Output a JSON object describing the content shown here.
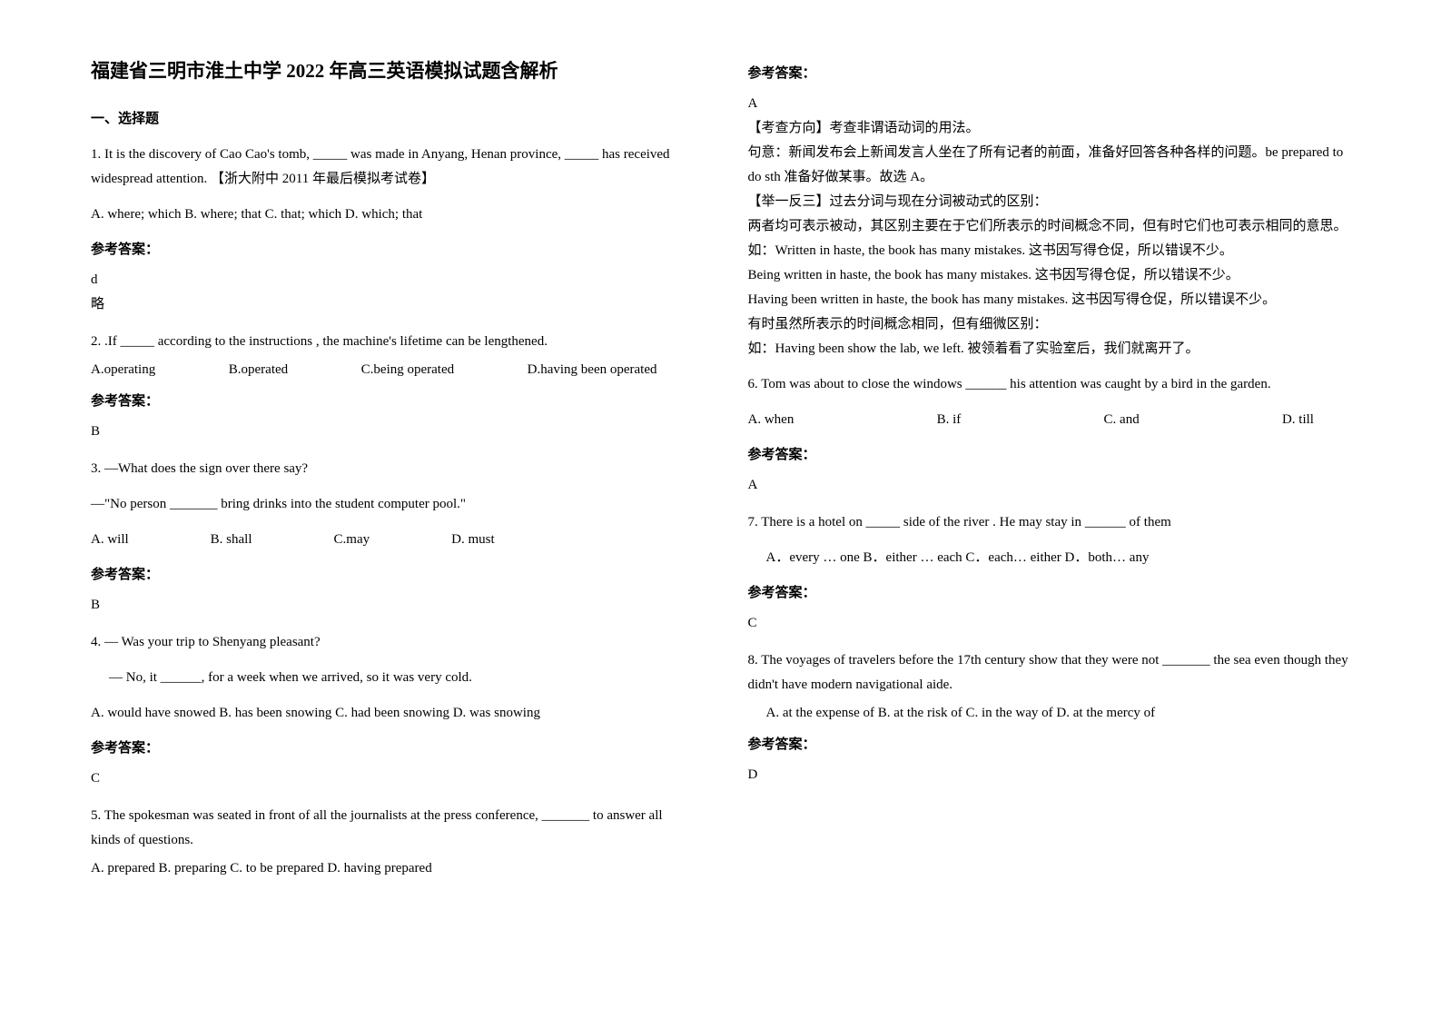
{
  "title": "福建省三明市淮土中学 2022 年高三英语模拟试题含解析",
  "section1": "一、选择题",
  "q1": {
    "text": "1. It is the discovery of Cao Cao's tomb, _____ was made in Anyang, Henan province, _____ has received widespread attention. 【浙大附中 2011 年最后模拟考试卷】",
    "opts": "A. where; which    B. where; that    C. that; which    D. which; that",
    "answer_label": "参考答案：",
    "answer": "d",
    "note": "略"
  },
  "q2": {
    "text": "2. .If _____ according to the instructions , the machine's lifetime can be lengthened.",
    "optA": "A.operating",
    "optB": "B.operated",
    "optC": "C.being operated",
    "optD": "D.having been operated",
    "answer_label": "参考答案：",
    "answer": "B"
  },
  "q3": {
    "text1": "3. —What does the sign over there say?",
    "text2": "—\"No person _______ bring drinks into the student computer pool.\"",
    "optA": "A. will",
    "optB": "B. shall",
    "optC": "C.may",
    "optD": "D. must",
    "answer_label": "参考答案：",
    "answer": "B"
  },
  "q4": {
    "text1": "4. — Was your trip to Shenyang pleasant?",
    "text2": "— No, it ______, for a week when we arrived, so it was very cold.",
    "opts": "A. would have snowed      B. has been snowing  C. had been snowing  D. was snowing",
    "answer_label": "参考答案：",
    "answer": "C"
  },
  "q5": {
    "text": "5. The spokesman was seated in front of all the journalists at the press conference, _______ to answer all kinds of questions.",
    "opts": "A. prepared    B. preparing    C. to be prepared    D. having prepared"
  },
  "col2": {
    "answer_label": "参考答案：",
    "answer": "A",
    "analysis_label": "【考查方向】考查非谓语动词的用法。",
    "line1": "句意：新闻发布会上新闻发言人坐在了所有记者的前面，准备好回答各种各样的问题。be prepared to do sth 准备好做某事。故选 A。",
    "line2_label": "【举一反三】过去分词与现在分词被动式的区别：",
    "line3": "两者均可表示被动，其区别主要在于它们所表示的时间概念不同，但有时它们也可表示相同的意思。",
    "line4": "如：Written in haste, the book has many mistakes. 这书因写得仓促，所以错误不少。",
    "line5": "Being written in haste, the book has many mistakes. 这书因写得仓促，所以错误不少。",
    "line6": "Having been written in haste, the book has many mistakes. 这书因写得仓促，所以错误不少。",
    "line7": "有时虽然所表示的时间概念相同，但有细微区别：",
    "line8": "如：Having been show the lab, we left. 被领着看了实验室后，我们就离开了。"
  },
  "q6": {
    "text": "6. Tom was about to close the windows ______ his attention was caught by a bird in the garden.",
    "optA": "A. when",
    "optB": "B. if",
    "optC": "C. and",
    "optD": "D. till",
    "answer_label": "参考答案：",
    "answer": "A"
  },
  "q7": {
    "text": "7. There is a hotel on _____ side of the river . He may stay in ______ of them",
    "opts": "A．every … one    B．either … each    C．each… either    D．both… any",
    "answer_label": "参考答案：",
    "answer": "C"
  },
  "q8": {
    "text": "8. The voyages of travelers before the 17th century show that they were not _______ the sea even though they didn't have modern navigational aide.",
    "opts": "A. at the expense of    B. at the risk of    C. in the way of    D. at the mercy of",
    "answer_label": "参考答案：",
    "answer": "D"
  }
}
